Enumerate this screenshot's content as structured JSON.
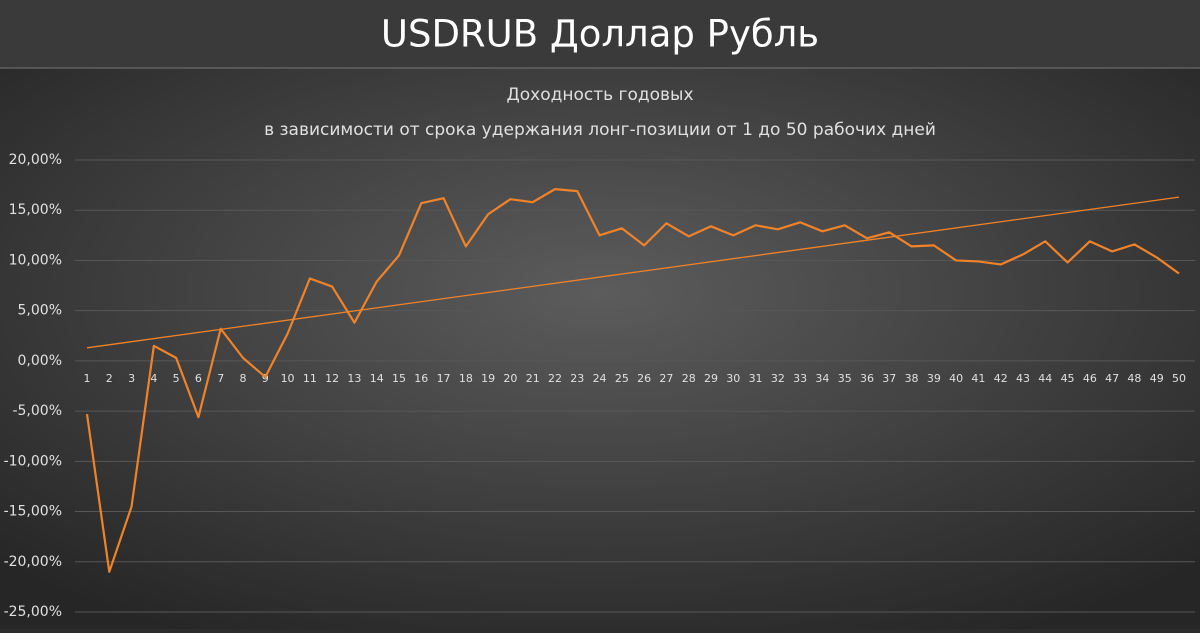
{
  "chart_data": {
    "type": "line",
    "title": "USDRUB Доллар Рубль",
    "subtitle": "Доходность годовых",
    "subtitle2": "в зависимости  от  срока  удержания  лонг-позиции  от 1 до 50 рабочих  дней",
    "categories": [
      "1",
      "2",
      "3",
      "4",
      "5",
      "6",
      "7",
      "8",
      "9",
      "10",
      "11",
      "12",
      "13",
      "14",
      "15",
      "16",
      "17",
      "18",
      "19",
      "20",
      "21",
      "22",
      "23",
      "24",
      "25",
      "26",
      "27",
      "28",
      "29",
      "30",
      "31",
      "32",
      "33",
      "34",
      "35",
      "36",
      "37",
      "38",
      "39",
      "40",
      "41",
      "42",
      "43",
      "44",
      "45",
      "46",
      "47",
      "48",
      "49",
      "50"
    ],
    "series": [
      {
        "color": "#f0832a",
        "values": [
          -5.3,
          -21.0,
          -14.5,
          1.5,
          0.3,
          -5.6,
          3.2,
          0.3,
          -1.6,
          2.7,
          8.2,
          7.4,
          3.8,
          7.9,
          10.5,
          15.7,
          16.2,
          11.4,
          14.6,
          16.1,
          15.8,
          17.1,
          16.9,
          12.5,
          13.2,
          11.5,
          13.7,
          12.4,
          13.4,
          12.5,
          13.5,
          13.1,
          13.8,
          12.9,
          13.5,
          12.2,
          12.8,
          11.4,
          11.5,
          10.0,
          9.9,
          9.6,
          10.6,
          11.9,
          9.8,
          11.9,
          10.9,
          11.6,
          10.3,
          8.7
        ]
      }
    ],
    "trendline": {
      "color": "#f0832a",
      "x": [
        1,
        50
      ],
      "values": [
        1.3,
        16.3
      ]
    },
    "ylim": [
      -25,
      20
    ],
    "yticks": [
      {
        "value": 20,
        "label": "20,00%"
      },
      {
        "value": 15,
        "label": "15,00%"
      },
      {
        "value": 10,
        "label": "10,00%"
      },
      {
        "value": 5,
        "label": "5,00%"
      },
      {
        "value": 0,
        "label": "0,00%"
      },
      {
        "value": -5,
        "label": "-5,00%"
      },
      {
        "value": -10,
        "label": "-10,00%"
      },
      {
        "value": -15,
        "label": "-15,00%"
      },
      {
        "value": -20,
        "label": "-20,00%"
      },
      {
        "value": -25,
        "label": "-25,00%"
      }
    ],
    "grid": true
  }
}
